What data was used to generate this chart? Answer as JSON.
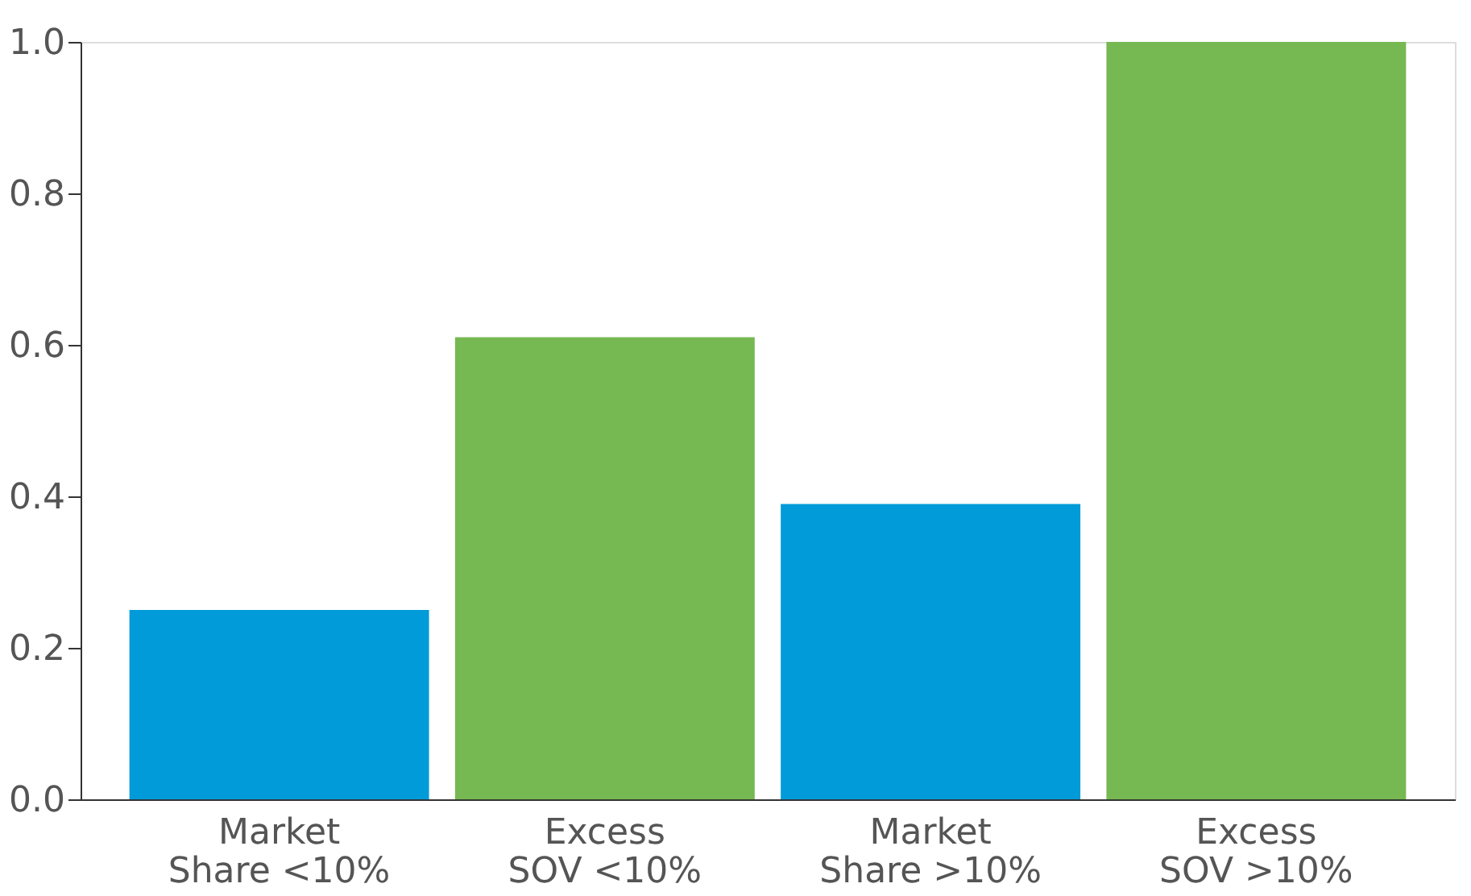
{
  "chart_data": {
    "type": "bar",
    "categories": [
      "Market Share <10%",
      "Excess SOV <10%",
      "Market Share >10%",
      "Excess SOV >10%"
    ],
    "values": [
      0.25,
      0.61,
      0.39,
      1.0
    ],
    "colors": [
      "#009bd8",
      "#76b852",
      "#009bd8",
      "#76b852"
    ],
    "ylim": [
      0,
      1.0
    ],
    "yticks": [
      {
        "value": 0,
        "label": "0.0"
      },
      0.2,
      0.4,
      0.6,
      0.8,
      {
        "value": 1.0,
        "label": "1.0"
      }
    ],
    "grid": false,
    "legend": false
  }
}
